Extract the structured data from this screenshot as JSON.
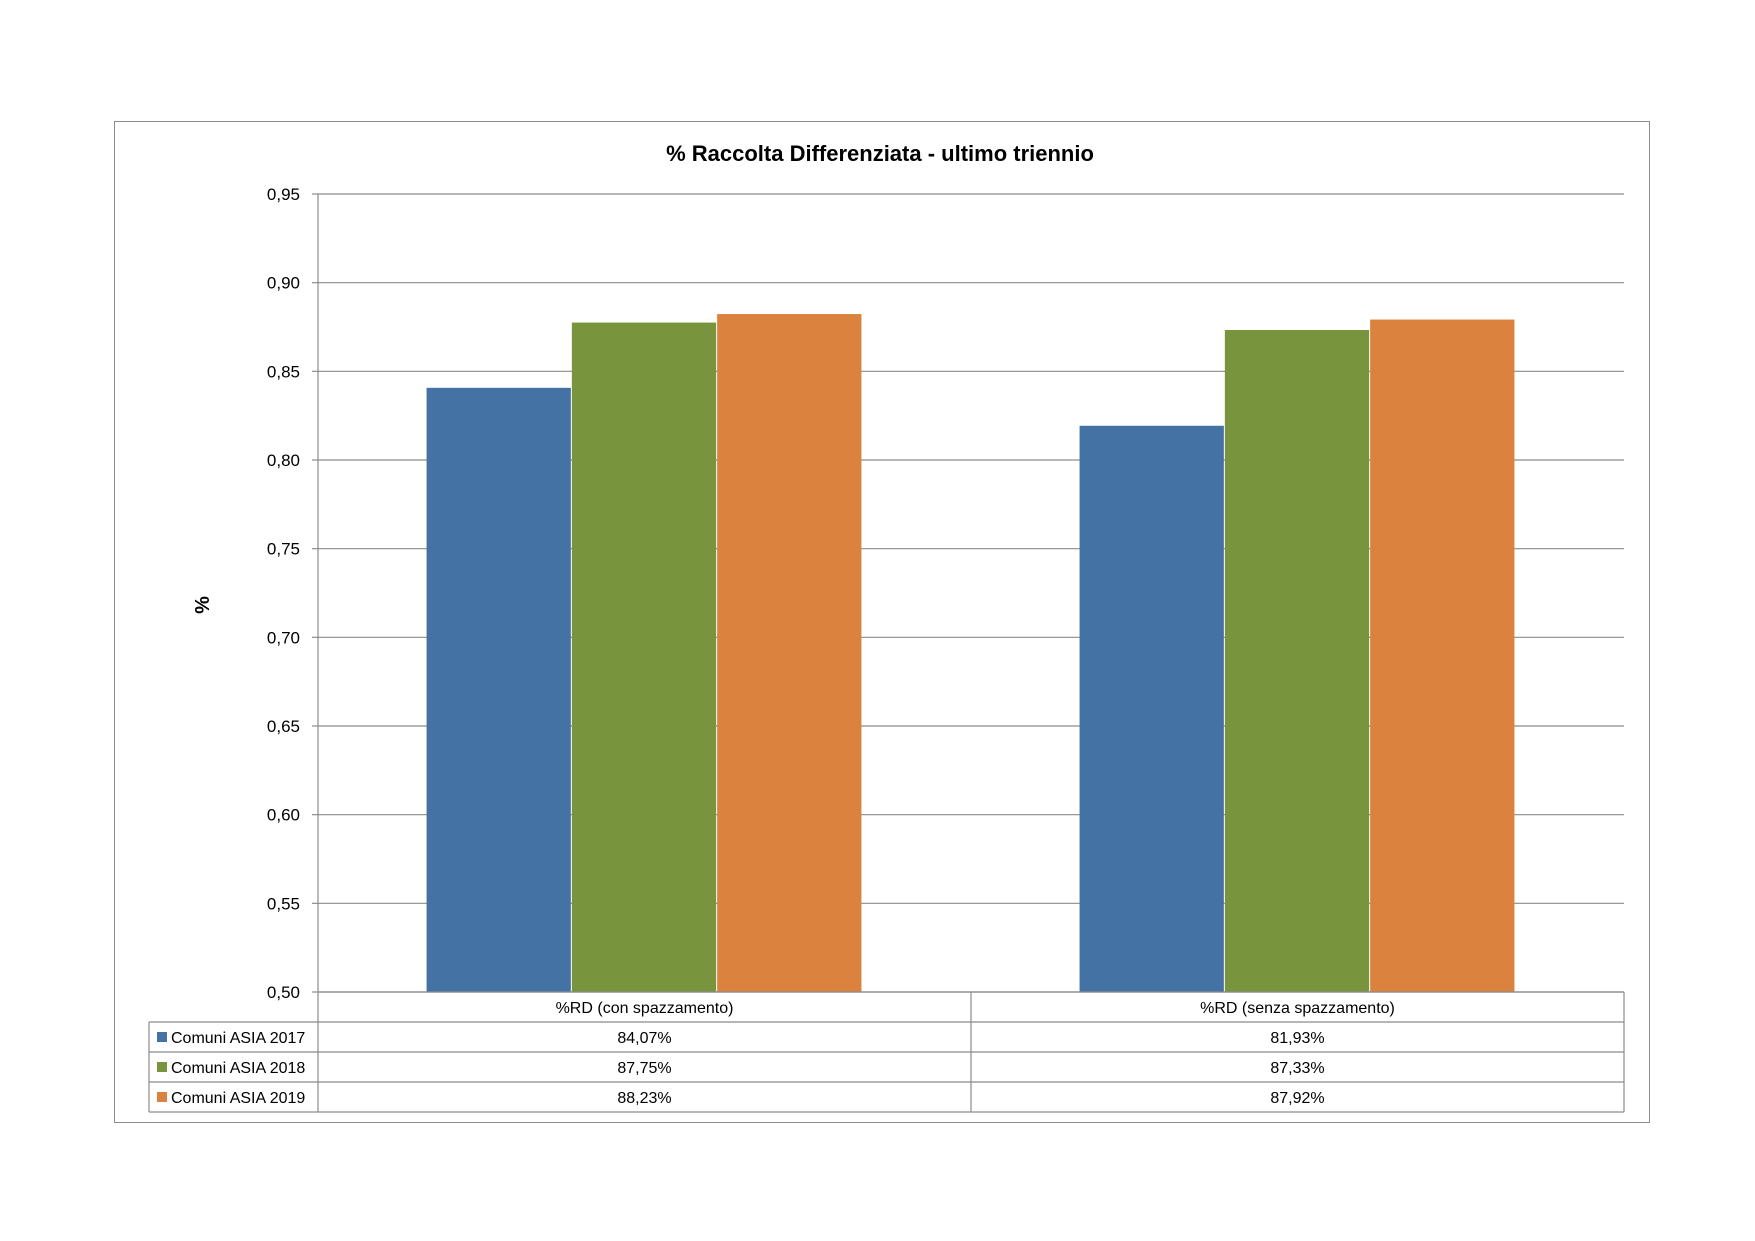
{
  "chart_data": {
    "type": "bar",
    "title": "% Raccolta Differenziata - ultimo triennio",
    "xlabel": "",
    "ylabel": "%",
    "ylim": [
      0.5,
      0.95
    ],
    "yticks": [
      "0,50",
      "0,55",
      "0,60",
      "0,65",
      "0,70",
      "0,75",
      "0,80",
      "0,85",
      "0,90",
      "0,95"
    ],
    "grid": true,
    "legend": "data-table",
    "categories": [
      "%RD (con spazzamento)",
      "%RD (senza spazzamento)"
    ],
    "series": [
      {
        "name": "Comuni ASIA 2017",
        "values": [
          0.8407,
          0.8193
        ],
        "labels": [
          "84,07%",
          "81,93%"
        ],
        "color": "#4472a4"
      },
      {
        "name": "Comuni ASIA 2018",
        "values": [
          0.8775,
          0.8733
        ],
        "labels": [
          "87,75%",
          "87,33%"
        ],
        "color": "#78943c"
      },
      {
        "name": "Comuni ASIA 2019",
        "values": [
          0.8823,
          0.8792
        ],
        "labels": [
          "88,23%",
          "87,92%"
        ],
        "color": "#db823e"
      }
    ]
  }
}
